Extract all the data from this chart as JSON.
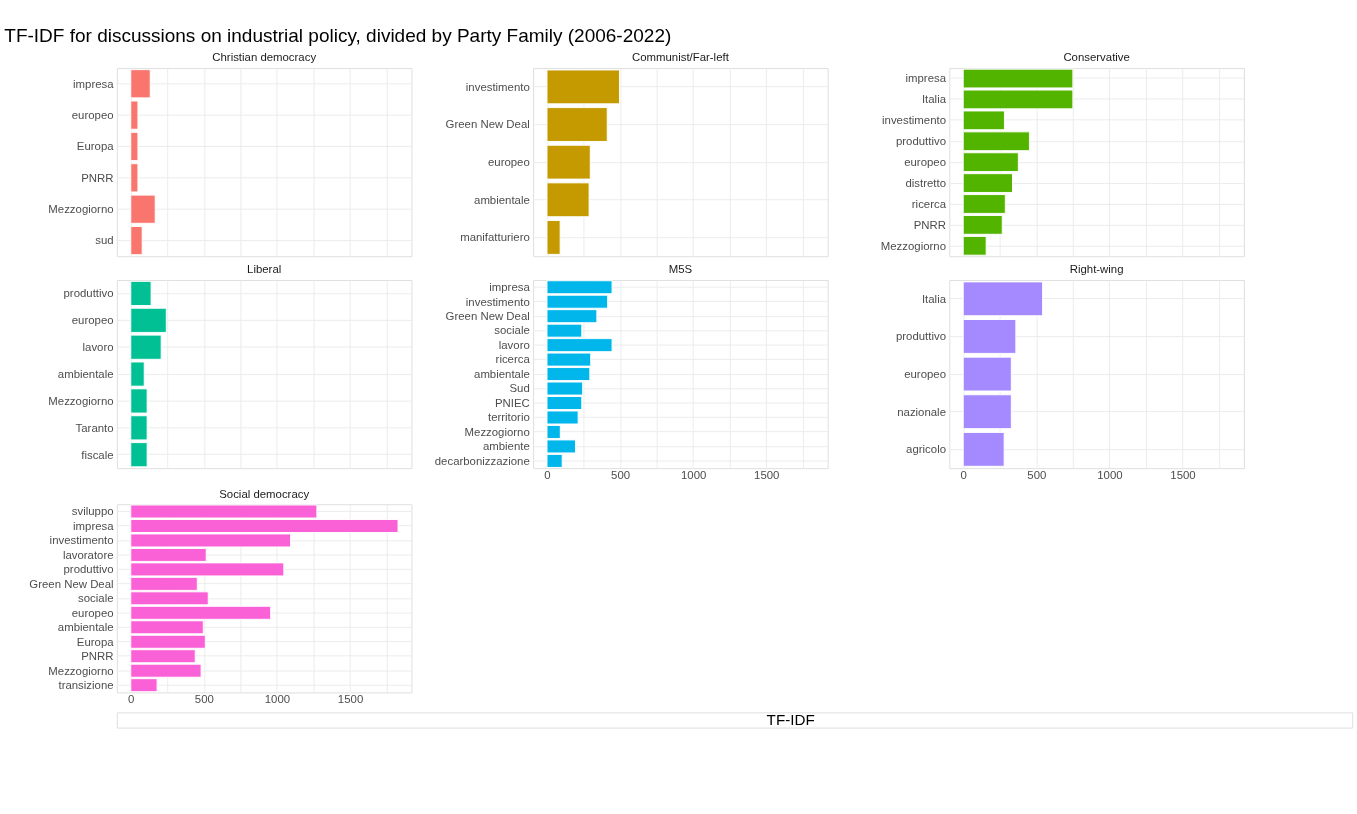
{
  "chart_data": [
    {
      "type": "bar",
      "orientation": "horizontal",
      "title": "Christian democracy",
      "annotations": [
        "TF-IDF for discussions on industrial policy, divided by Party Family (2006-2022)",
        "TF-IDF"
      ],
      "categories": [
        "impresa",
        "europeo",
        "Europa",
        "PNRR",
        "Mezzogiorno",
        "sud"
      ],
      "values": [
        133,
        49,
        49,
        49,
        167,
        78
      ],
      "color": "#f8766d",
      "xlim": [
        -95,
        1920
      ],
      "xticks": [
        0,
        {
          "value": 250,
          "label": null
        },
        500,
        {
          "value": 750,
          "label": null
        },
        1000,
        {
          "value": 1250,
          "label": null
        },
        1500,
        {
          "value": 1750,
          "label": null
        }
      ],
      "grid": true,
      "tick_labels": "y"
    },
    {
      "type": "bar",
      "orientation": "horizontal",
      "title": "Communist/Far-left",
      "categories": [
        "investimento",
        "Green New Deal",
        "europeo",
        "ambientale",
        "manifatturiero"
      ],
      "values": [
        496,
        412,
        296,
        288,
        90
      ],
      "color": "#c49a00",
      "xlim": [
        -95,
        1920
      ],
      "xticks": [
        0,
        {
          "value": 250,
          "label": null
        },
        500,
        {
          "value": 750,
          "label": null
        },
        1000,
        {
          "value": 1250,
          "label": null
        },
        1500,
        {
          "value": 1750,
          "label": null
        }
      ],
      "grid": true,
      "tick_labels": "y"
    },
    {
      "type": "bar",
      "orientation": "horizontal",
      "title": "Conservative",
      "categories": [
        "impresa",
        "Italia",
        "investimento",
        "produttivo",
        "europeo",
        "distretto",
        "ricerca",
        "PNRR",
        "Mezzogiorno"
      ],
      "values": [
        750,
        750,
        282,
        453,
        377,
        337,
        288,
        267,
        157
      ],
      "color": "#53b400",
      "xlim": [
        -95,
        1920
      ],
      "xticks": [
        0,
        {
          "value": 250,
          "label": null
        },
        500,
        {
          "value": 750,
          "label": null
        },
        1000,
        {
          "value": 1250,
          "label": null
        },
        1500,
        {
          "value": 1750,
          "label": null
        }
      ],
      "grid": true,
      "tick_labels": "y"
    },
    {
      "type": "bar",
      "orientation": "horizontal",
      "title": "Liberal",
      "categories": [
        "produttivo",
        "europeo",
        "lavoro",
        "ambientale",
        "Mezzogiorno",
        "Taranto",
        "fiscale"
      ],
      "values": [
        139,
        243,
        208,
        92,
        112,
        112,
        112
      ],
      "color": "#00c094",
      "xlim": [
        -95,
        1920
      ],
      "xticks": [
        0,
        {
          "value": 250,
          "label": null
        },
        500,
        {
          "value": 750,
          "label": null
        },
        1000,
        {
          "value": 1250,
          "label": null
        },
        1500,
        {
          "value": 1750,
          "label": null
        }
      ],
      "grid": true,
      "tick_labels": "y"
    },
    {
      "type": "bar",
      "orientation": "horizontal",
      "title": "M5S",
      "categories": [
        "impresa",
        "investimento",
        "Green New Deal",
        "sociale",
        "lavoro",
        "ricerca",
        "ambientale",
        "Sud",
        "PNIEC",
        "territorio",
        "Mezzogiorno",
        "ambiente",
        "decarbonizzazione"
      ],
      "values": [
        445,
        415,
        341,
        238,
        445,
        299,
        293,
        244,
        238,
        213,
        91,
        195,
        104
      ],
      "color": "#00b6eb",
      "xlim": [
        -95,
        1920
      ],
      "xticks": [
        0,
        {
          "value": 250,
          "label": null
        },
        500,
        {
          "value": 750,
          "label": null
        },
        1000,
        {
          "value": 1250,
          "label": null
        },
        1500,
        {
          "value": 1750,
          "label": null
        }
      ],
      "grid": true
    },
    {
      "type": "bar",
      "orientation": "horizontal",
      "title": "Right-wing",
      "categories": [
        "Italia",
        "produttivo",
        "europeo",
        "nazionale",
        "agricolo"
      ],
      "values": [
        543,
        360,
        329,
        329,
        280
      ],
      "color": "#a58aff",
      "xlim": [
        -95,
        1920
      ],
      "xticks": [
        0,
        {
          "value": 250,
          "label": null
        },
        500,
        {
          "value": 750,
          "label": null
        },
        1000,
        {
          "value": 1250,
          "label": null
        },
        1500,
        {
          "value": 1750,
          "label": null
        }
      ],
      "grid": true
    },
    {
      "type": "bar",
      "orientation": "horizontal",
      "title": "Social democracy",
      "categories": [
        "sviluppo",
        "impresa",
        "investimento",
        "lavoratore",
        "produttivo",
        "Green New Deal",
        "sociale",
        "europeo",
        "ambientale",
        "Europa",
        "PNRR",
        "Mezzogiorno",
        "transizione"
      ],
      "values": [
        1273,
        1828,
        1093,
        516,
        1047,
        455,
        530,
        957,
        496,
        510,
        441,
        481,
        180
      ],
      "color": "#fb61d7",
      "xlim": [
        -95,
        1920
      ],
      "xticks": [
        0,
        {
          "value": 250,
          "label": null
        },
        500,
        {
          "value": 750,
          "label": null
        },
        1000,
        {
          "value": 1250,
          "label": null
        },
        1500,
        {
          "value": 1750,
          "label": null
        }
      ],
      "grid": true
    }
  ]
}
